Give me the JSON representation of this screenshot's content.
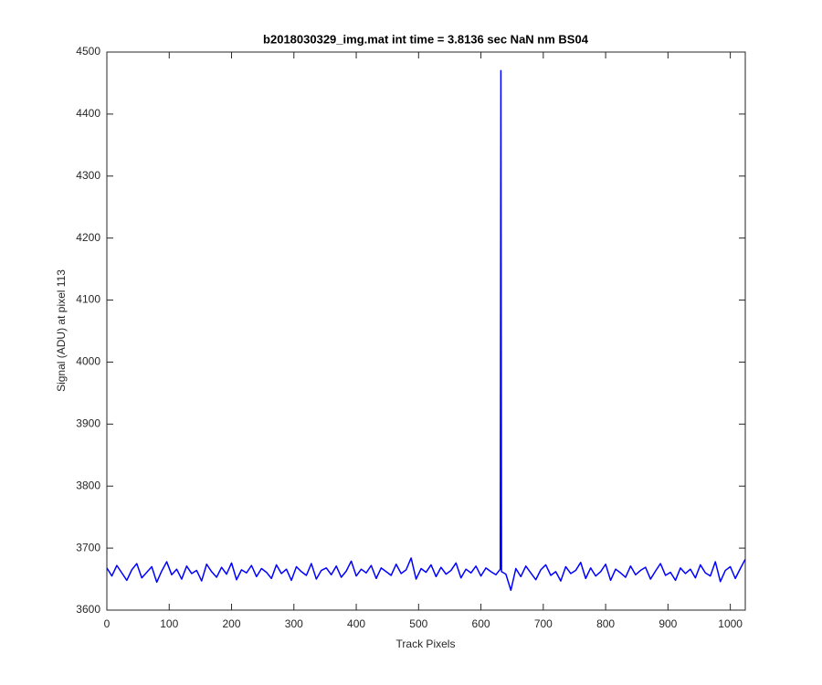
{
  "chart_data": {
    "type": "line",
    "title": "b2018030329_img.mat int time = 3.8136 sec  NaN nm BS04",
    "xlabel": "Track Pixels",
    "ylabel": "Signal (ADU) at pixel 113",
    "x": [
      0,
      8,
      16,
      24,
      32,
      40,
      48,
      56,
      64,
      72,
      80,
      88,
      96,
      104,
      112,
      120,
      128,
      136,
      144,
      152,
      160,
      168,
      176,
      184,
      192,
      200,
      208,
      216,
      224,
      232,
      240,
      248,
      256,
      264,
      272,
      280,
      288,
      296,
      304,
      312,
      320,
      328,
      336,
      344,
      352,
      360,
      368,
      376,
      384,
      392,
      400,
      408,
      416,
      424,
      432,
      440,
      448,
      456,
      464,
      472,
      480,
      488,
      496,
      504,
      512,
      520,
      528,
      536,
      544,
      552,
      560,
      568,
      576,
      584,
      592,
      600,
      608,
      616,
      624,
      631,
      632,
      633,
      640,
      648,
      656,
      664,
      672,
      680,
      688,
      696,
      704,
      712,
      720,
      728,
      736,
      744,
      752,
      760,
      768,
      776,
      784,
      792,
      800,
      808,
      816,
      824,
      832,
      840,
      848,
      856,
      864,
      872,
      880,
      888,
      896,
      904,
      912,
      920,
      928,
      936,
      944,
      952,
      960,
      968,
      976,
      984,
      992,
      1000,
      1008,
      1016,
      1024
    ],
    "series": [
      {
        "name": "signal",
        "color": "#0000ff",
        "values": [
          3668,
          3655,
          3672,
          3660,
          3648,
          3665,
          3675,
          3652,
          3661,
          3670,
          3645,
          3663,
          3678,
          3657,
          3666,
          3650,
          3671,
          3659,
          3664,
          3647,
          3674,
          3662,
          3653,
          3669,
          3658,
          3676,
          3649,
          3665,
          3660,
          3672,
          3654,
          3667,
          3661,
          3651,
          3673,
          3659,
          3666,
          3648,
          3670,
          3662,
          3656,
          3675,
          3650,
          3664,
          3668,
          3657,
          3671,
          3653,
          3663,
          3679,
          3655,
          3666,
          3660,
          3672,
          3651,
          3668,
          3662,
          3656,
          3674,
          3659,
          3665,
          3684,
          3650,
          3667,
          3661,
          3673,
          3654,
          3669,
          3658,
          3664,
          3676,
          3652,
          3666,
          3660,
          3671,
          3655,
          3668,
          3662,
          3657,
          3666,
          4470,
          3662,
          3658,
          3632,
          3667,
          3654,
          3671,
          3660,
          3649,
          3665,
          3673,
          3656,
          3662,
          3647,
          3670,
          3659,
          3664,
          3677,
          3651,
          3668,
          3655,
          3662,
          3674,
          3648,
          3666,
          3660,
          3653,
          3671,
          3657,
          3664,
          3669,
          3650,
          3663,
          3675,
          3656,
          3661,
          3648,
          3668,
          3659,
          3666,
          3652,
          3673,
          3660,
          3655,
          3678,
          3646,
          3664,
          3670,
          3651,
          3667,
          3682
        ]
      }
    ],
    "xlim": [
      0,
      1024
    ],
    "xticks": [
      0,
      100,
      200,
      300,
      400,
      500,
      600,
      700,
      800,
      900,
      1000
    ],
    "ylim": [
      3600,
      4500
    ],
    "yticks": [
      3600,
      3700,
      3800,
      3900,
      4000,
      4100,
      4200,
      4300,
      4400,
      4500
    ]
  }
}
